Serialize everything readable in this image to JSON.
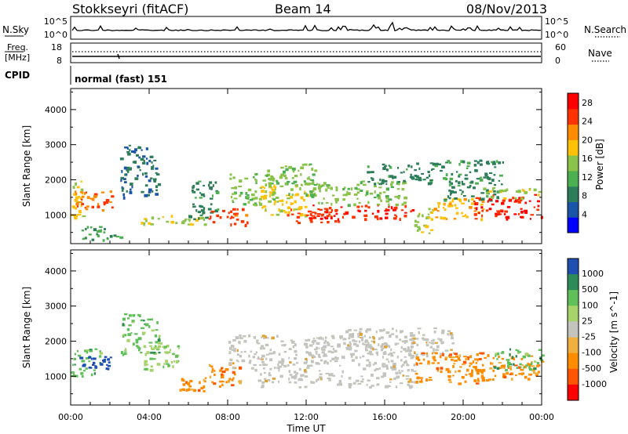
{
  "header": {
    "site": "Stokkseyri (fitACF)",
    "beam": "Beam 14",
    "date": "08/Nov/2013"
  },
  "noise_panel": {
    "left_label": "N.Sky",
    "right_label": "N.Search",
    "ticks_left": [
      "10^5",
      "10^0"
    ],
    "ticks_right": [
      "10^5",
      "10^0"
    ]
  },
  "freq_panel": {
    "left_label_1": "Freq.",
    "left_label_2": "[MHz]",
    "left_ticks": [
      "18",
      "8"
    ],
    "right_label": "Nave",
    "right_ticks": [
      "60",
      "0"
    ]
  },
  "cpid_panel": {
    "left_label": "CPID",
    "program": "normal (fast) 151"
  },
  "colors": {
    "power": [
      "#0000ff",
      "#1a55a8",
      "#2e7d5a",
      "#4caf50",
      "#8bc34a",
      "#ffc107",
      "#ff8c00",
      "#ff3300",
      "#ff0000"
    ],
    "velocity_pos": [
      "#1f4fb0",
      "#2e8b57",
      "#5fc05a",
      "#a7d36a"
    ],
    "velocity_gs": "#c4c4be",
    "velocity_neg": [
      "#f0b040",
      "#ff8c00",
      "#ff5500",
      "#ff0000"
    ]
  },
  "chart_data": [
    {
      "type": "heatmap",
      "panel": "power",
      "ylabel": "Slant Range [km]",
      "y_ticks": [
        1000,
        2000,
        3000,
        4000
      ],
      "ylim": [
        180,
        4600
      ],
      "xlim": [
        0,
        24
      ],
      "colorbar_label": "Power [dB]",
      "colorbar_ticks": [
        "4",
        "8",
        "12",
        "16",
        "20",
        "24",
        "28"
      ],
      "colorbar_range": [
        0,
        30
      ],
      "regions": [
        {
          "t": [
            0.0,
            0.6
          ],
          "r": [
            900,
            2000
          ],
          "v": 18
        },
        {
          "t": [
            0.2,
            2.2
          ],
          "r": [
            1100,
            1700
          ],
          "v": 24
        },
        {
          "t": [
            0.5,
            2.5
          ],
          "r": [
            300,
            700
          ],
          "v": 10
        },
        {
          "t": [
            2.5,
            4.5
          ],
          "r": [
            1500,
            3000
          ],
          "v": 6
        },
        {
          "t": [
            3.5,
            6.8
          ],
          "r": [
            700,
            1000
          ],
          "v": 16
        },
        {
          "t": [
            6.0,
            7.5
          ],
          "r": [
            900,
            2000
          ],
          "v": 8
        },
        {
          "t": [
            7.0,
            9.0
          ],
          "r": [
            700,
            1200
          ],
          "v": 26
        },
        {
          "t": [
            8.0,
            10.5
          ],
          "r": [
            1300,
            2200
          ],
          "v": 14
        },
        {
          "t": [
            9.5,
            12.0
          ],
          "r": [
            1000,
            1900
          ],
          "v": 18
        },
        {
          "t": [
            10.0,
            12.5
          ],
          "r": [
            1600,
            2500
          ],
          "v": 14
        },
        {
          "t": [
            11.0,
            14.0
          ],
          "r": [
            800,
            1200
          ],
          "v": 26
        },
        {
          "t": [
            12.0,
            17.5
          ],
          "r": [
            900,
            1300
          ],
          "v": 28
        },
        {
          "t": [
            12.0,
            17.0
          ],
          "r": [
            1300,
            2000
          ],
          "v": 14
        },
        {
          "t": [
            15.0,
            19.0
          ],
          "r": [
            1900,
            2500
          ],
          "v": 8
        },
        {
          "t": [
            17.5,
            18.5
          ],
          "r": [
            500,
            1200
          ],
          "v": 16
        },
        {
          "t": [
            18.5,
            21.0
          ],
          "r": [
            900,
            1500
          ],
          "v": 20
        },
        {
          "t": [
            19.0,
            22.0
          ],
          "r": [
            1400,
            2600
          ],
          "v": 8
        },
        {
          "t": [
            20.5,
            24.0
          ],
          "r": [
            900,
            1600
          ],
          "v": 28
        },
        {
          "t": [
            21.0,
            24.0
          ],
          "r": [
            1500,
            1800
          ],
          "v": 16
        }
      ]
    },
    {
      "type": "heatmap",
      "panel": "velocity",
      "ylabel": "Slant Range [km]",
      "y_ticks": [
        1000,
        2000,
        3000,
        4000
      ],
      "ylim": [
        180,
        4600
      ],
      "xlim": [
        0,
        24
      ],
      "x_ticks": [
        "00:00",
        "04:00",
        "08:00",
        "12:00",
        "16:00",
        "20:00",
        "00:00"
      ],
      "xlabel": "Time UT",
      "colorbar_label": "Velocity [m s^-1]",
      "colorbar_ticks": [
        "1000",
        "500",
        "100",
        "25",
        "-25",
        "-100",
        "-500",
        "-1000"
      ],
      "regions": [
        {
          "t": [
            0.0,
            1.5
          ],
          "r": [
            1000,
            1800
          ],
          "v": 300
        },
        {
          "t": [
            0.3,
            2.0
          ],
          "r": [
            1200,
            1600
          ],
          "v": 1200
        },
        {
          "t": [
            2.5,
            4.5
          ],
          "r": [
            1600,
            2800
          ],
          "v": 200
        },
        {
          "t": [
            3.5,
            5.5
          ],
          "r": [
            1200,
            2000
          ],
          "v": 80
        },
        {
          "t": [
            5.5,
            7.0
          ],
          "r": [
            600,
            1000
          ],
          "v": -120
        },
        {
          "t": [
            7.0,
            8.8
          ],
          "r": [
            700,
            1400
          ],
          "v": -300
        },
        {
          "t": [
            8.0,
            10.0
          ],
          "r": [
            1200,
            2200
          ],
          "v": 0
        },
        {
          "t": [
            9.5,
            17.5
          ],
          "r": [
            700,
            2200
          ],
          "v": 0
        },
        {
          "t": [
            14.0,
            19.5
          ],
          "r": [
            1600,
            2400
          ],
          "v": 0
        },
        {
          "t": [
            17.5,
            21.0
          ],
          "r": [
            800,
            1700
          ],
          "v": -300
        },
        {
          "t": [
            20.0,
            24.0
          ],
          "r": [
            900,
            1700
          ],
          "v": -120
        },
        {
          "t": [
            21.5,
            24.0
          ],
          "r": [
            1200,
            1800
          ],
          "v": 200
        }
      ]
    }
  ]
}
